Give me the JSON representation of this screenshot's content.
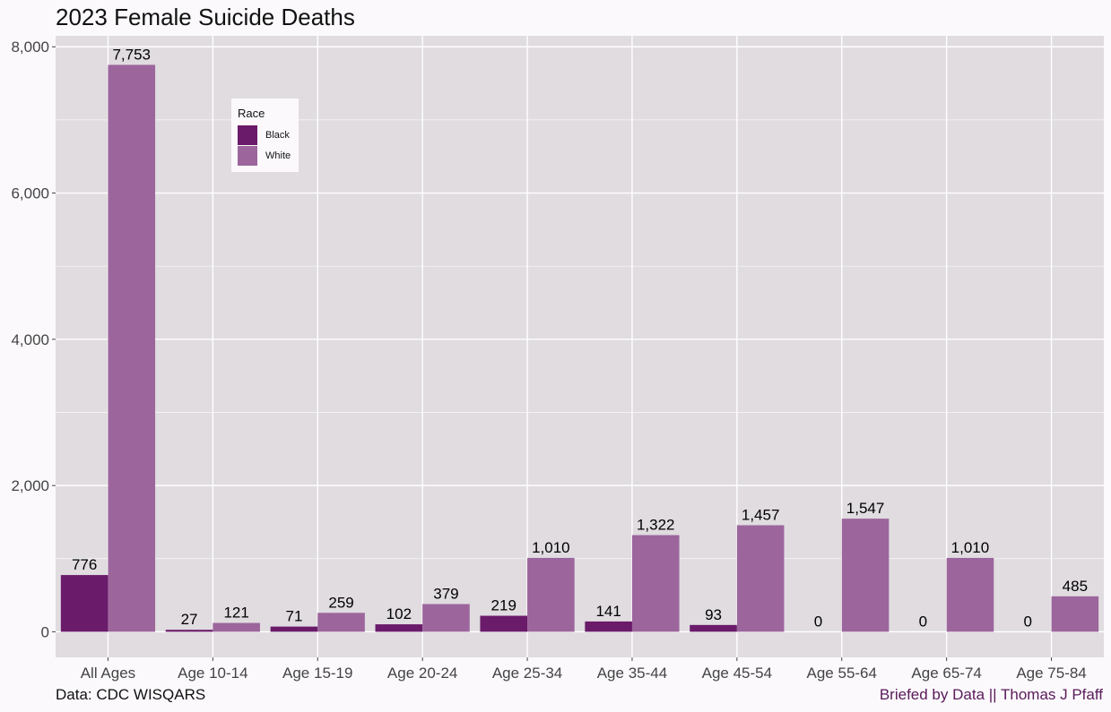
{
  "title": "2023 Female Suicide Deaths",
  "caption_left": "Data: CDC WISQARS",
  "caption_right": "Briefed by Data || Thomas J Pfaff",
  "colors": {
    "black_series": "#6a1b6a",
    "white_series": "#9c669c",
    "panel": "#e0dce0",
    "grid": "#ffffff",
    "caption_right": "#5a1a5a"
  },
  "legend": {
    "title": "Race",
    "position": "top-left inside",
    "items": [
      {
        "label": "Black",
        "color": "#6a1b6a"
      },
      {
        "label": "White",
        "color": "#9c669c"
      }
    ]
  },
  "chart_data": {
    "type": "bar",
    "title": "2023 Female Suicide Deaths",
    "xlabel": "",
    "ylabel": "",
    "ylim": [
      -350,
      8150
    ],
    "yticks": [
      0,
      2000,
      4000,
      6000,
      8000
    ],
    "ytick_labels": [
      "0",
      "2,000",
      "4,000",
      "6,000",
      "8,000"
    ],
    "grid": true,
    "categories": [
      "All Ages",
      "Age 10-14",
      "Age 15-19",
      "Age 20-24",
      "Age 25-34",
      "Age 35-44",
      "Age 45-54",
      "Age 55-64",
      "Age 65-74",
      "Age 75-84"
    ],
    "series": [
      {
        "name": "Black",
        "values": [
          776,
          27,
          71,
          102,
          219,
          141,
          93,
          0,
          0,
          0
        ],
        "labels": [
          "776",
          "27",
          "71",
          "102",
          "219",
          "141",
          "93",
          "0",
          "0",
          "0"
        ]
      },
      {
        "name": "White",
        "values": [
          7753,
          121,
          259,
          379,
          1010,
          1322,
          1457,
          1547,
          1010,
          485
        ],
        "labels": [
          "7,753",
          "121",
          "259",
          "379",
          "1,010",
          "1,322",
          "1,457",
          "1,547",
          "1,010",
          "485"
        ]
      }
    ]
  }
}
